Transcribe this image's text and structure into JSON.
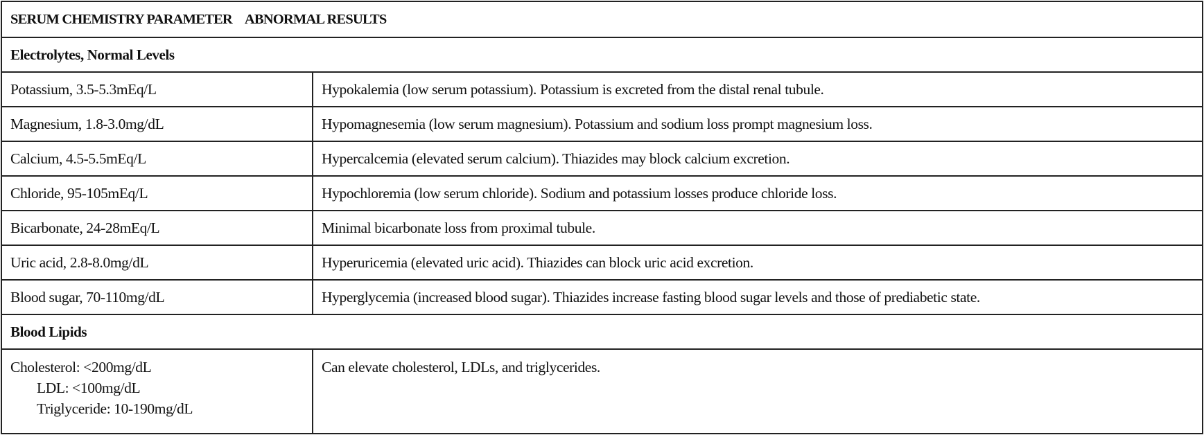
{
  "table": {
    "header": [
      "SERUM CHEMISTRY PARAMETER",
      "ABNORMAL RESULTS"
    ],
    "sections": [
      {
        "title": "Electrolytes, Normal Levels",
        "rows": [
          [
            [
              "Potassium, 3.5-5.3mEq/L"
            ],
            "Hypokalemia (low serum potassium). Potassium is excreted from the distal renal tubule."
          ],
          [
            [
              "Magnesium, 1.8-3.0mg/dL"
            ],
            "Hypomagnesemia (low serum magnesium). Potassium and sodium loss prompt magnesium loss."
          ],
          [
            [
              "Calcium, 4.5-5.5mEq/L"
            ],
            "Hypercalcemia (elevated serum calcium). Thiazides may block calcium excretion."
          ],
          [
            [
              "Chloride, 95-105mEq/L"
            ],
            "Hypochloremia (low serum chloride). Sodium and potassium losses produce chloride loss."
          ],
          [
            [
              "Bicarbonate, 24-28mEq/L"
            ],
            "Minimal bicarbonate loss from proximal tubule."
          ],
          [
            [
              "Uric acid, 2.8-8.0mg/dL"
            ],
            "Hyperuricemia (elevated uric acid). Thiazides can block uric acid excretion."
          ],
          [
            [
              "Blood sugar, 70-110mg/dL"
            ],
            "Hyperglycemia (increased blood sugar). Thiazides increase fasting blood sugar levels and those of prediabetic state."
          ]
        ]
      },
      {
        "title": "Blood Lipids",
        "rows": [
          [
            [
              "Cholesterol: <200mg/dL",
              "LDL: <100mg/dL",
              "Triglyceride: 10-190mg/dL"
            ],
            "Can elevate cholesterol, LDLs, and triglycerides."
          ]
        ]
      }
    ]
  }
}
